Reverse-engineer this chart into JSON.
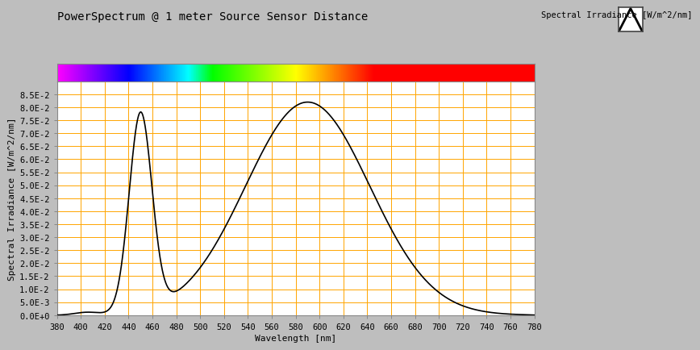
{
  "title": "PowerSpectrum @ 1 meter Source Sensor Distance",
  "xlabel": "Wavelength [nm]",
  "ylabel": "Spectral Irradiance [W/m^2/nm]",
  "legend_label": "Spectral Irradiance [W/m^2/nm]",
  "xmin": 380,
  "xmax": 780,
  "ymin": 0.0,
  "ymax": 0.09,
  "bg_color": "#bebebe",
  "plot_bg_color": "#ffffff",
  "grid_color": "#FFA500",
  "line_color": "#000000",
  "title_fontsize": 10,
  "axis_label_fontsize": 8,
  "tick_fontsize": 7.5,
  "yticks": [
    0.0,
    0.005,
    0.01,
    0.015,
    0.02,
    0.025,
    0.03,
    0.035,
    0.04,
    0.045,
    0.05,
    0.055,
    0.06,
    0.065,
    0.07,
    0.075,
    0.08,
    0.085
  ],
  "ytick_labels": [
    "0.0E+0",
    "5.0E-3",
    "1.0E-2",
    "1.5E-2",
    "2.0E-2",
    "2.5E-2",
    "3.0E-2",
    "3.5E-2",
    "4.0E-2",
    "4.5E-2",
    "5.0E-2",
    "5.5E-2",
    "6.0E-2",
    "6.5E-2",
    "7.0E-2",
    "7.5E-2",
    "8.0E-2",
    "8.5E-2"
  ],
  "xticks": [
    380,
    400,
    420,
    440,
    460,
    480,
    500,
    520,
    540,
    560,
    580,
    600,
    620,
    640,
    660,
    680,
    700,
    720,
    740,
    760,
    780
  ]
}
